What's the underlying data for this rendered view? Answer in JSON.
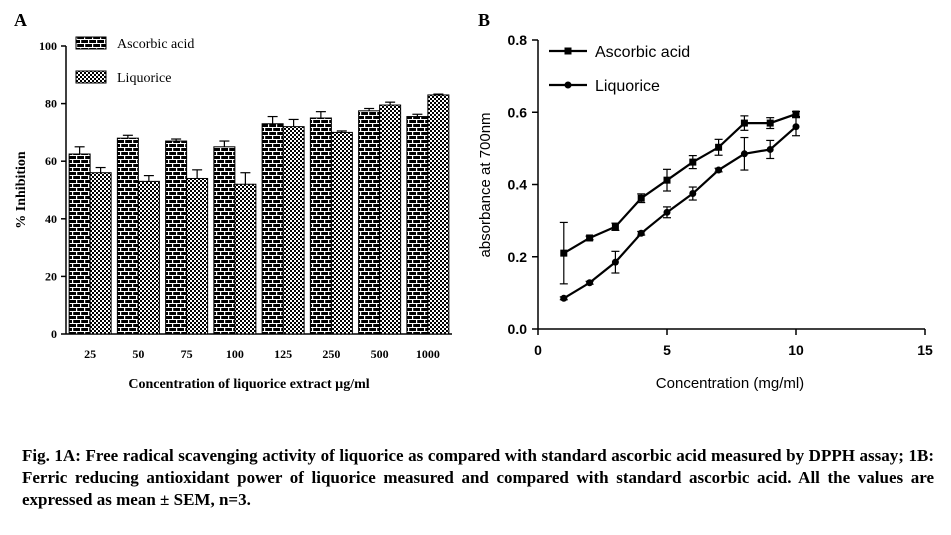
{
  "chart_data": [
    {
      "panel_label": "A",
      "type": "bar",
      "xlabel": "Concentration of liquorice extract µg/ml",
      "ylabel": "% Inhibition",
      "ylim": [
        0,
        100
      ],
      "yticks": [
        "0",
        "20",
        "40",
        "60",
        "80",
        "100"
      ],
      "categories": [
        "25",
        "50",
        "75",
        "100",
        "125",
        "250",
        "500",
        "1000"
      ],
      "legend_position": "top-left",
      "series": [
        {
          "name": "Ascorbic acid",
          "pattern": "brick",
          "values": [
            62.5,
            68,
            67,
            65,
            73,
            75,
            77.5,
            75.5
          ],
          "errors": [
            2.5,
            1,
            0.7,
            2,
            2.5,
            2.2,
            0.8,
            0.8
          ]
        },
        {
          "name": "Liquorice",
          "pattern": "checker",
          "values": [
            56,
            53,
            54,
            52,
            72,
            70,
            79.5,
            83
          ],
          "errors": [
            1.8,
            2,
            3,
            4,
            2.5,
            0.5,
            1,
            0.3
          ]
        }
      ],
      "grid": false
    },
    {
      "panel_label": "B",
      "type": "line",
      "xlabel": "Concentration (mg/ml)",
      "ylabel": "absorbance at 700nm",
      "xlim": [
        0,
        15
      ],
      "ylim": [
        0,
        0.8
      ],
      "xticks": [
        "0",
        "5",
        "10",
        "15"
      ],
      "yticks": [
        "0.0",
        "0.2",
        "0.4",
        "0.6",
        "0.8"
      ],
      "legend_position": "top-left",
      "series": [
        {
          "name": "Ascorbic acid",
          "marker": "square",
          "x": [
            1,
            2,
            3,
            4,
            5,
            6,
            7,
            8,
            9,
            10
          ],
          "y": [
            0.21,
            0.252,
            0.283,
            0.362,
            0.412,
            0.462,
            0.503,
            0.57,
            0.57,
            0.595
          ],
          "errors": [
            0.085,
            0.005,
            0.01,
            0.012,
            0.03,
            0.018,
            0.022,
            0.02,
            0.015,
            0.007
          ]
        },
        {
          "name": "Liquorice",
          "marker": "circle",
          "x": [
            1,
            2,
            3,
            4,
            5,
            6,
            7,
            8,
            9,
            10
          ],
          "y": [
            0.085,
            0.128,
            0.185,
            0.265,
            0.323,
            0.375,
            0.44,
            0.485,
            0.497,
            0.56
          ],
          "errors": [
            0.004,
            0.004,
            0.03,
            0.005,
            0.015,
            0.018,
            0.005,
            0.045,
            0.025,
            0.025
          ]
        }
      ],
      "grid": false
    }
  ],
  "caption": "Fig. 1A:  Free radical scavenging activity of liquorice as compared with standard ascorbic acid measured by DPPH assay; 1B:  Ferric reducing antioxidant power of liquorice measured and compared with standard ascorbic acid. All the values are expressed as mean ± SEM, n=3."
}
